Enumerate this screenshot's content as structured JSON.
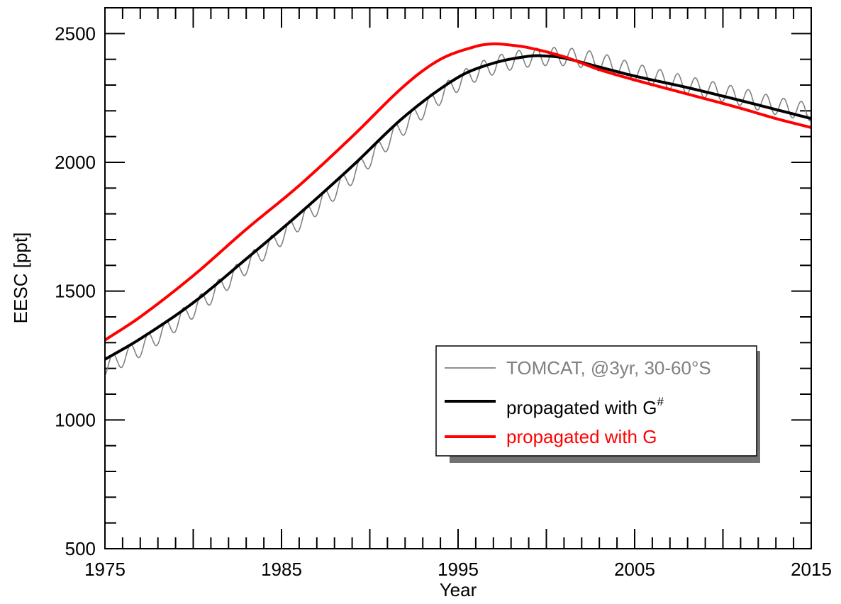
{
  "chart_data": {
    "type": "line",
    "xlabel": "Year",
    "ylabel": "EESC [ppt]",
    "xlim": [
      1975,
      2015
    ],
    "ylim": [
      500,
      2600
    ],
    "x_ticks": [
      1975,
      1985,
      1995,
      2005,
      2015
    ],
    "y_ticks": [
      500,
      1000,
      1500,
      2000,
      2500
    ],
    "grid": false,
    "legend_position": "lower-right",
    "series": [
      {
        "name": "TOMCAT, @3yr, 30-60°S",
        "color": "#808080",
        "style": "thin-oscillating",
        "seasonal_amplitude": 35,
        "x": [
          1975,
          1977,
          1980,
          1983,
          1986,
          1989,
          1992,
          1995,
          1997,
          1999,
          2001,
          2003,
          2005,
          2008,
          2011,
          2013,
          2015
        ],
        "y": [
          1205,
          1280,
          1430,
          1600,
          1770,
          1950,
          2145,
          2310,
          2375,
          2405,
          2410,
          2390,
          2350,
          2300,
          2255,
          2220,
          2195
        ]
      },
      {
        "name": "propagated with G",
        "name_sup": "#",
        "color": "#000000",
        "style": "thick",
        "x": [
          1975,
          1977,
          1980,
          1983,
          1986,
          1989,
          1992,
          1995,
          1997,
          1999,
          2000,
          2001,
          2003,
          2005,
          2008,
          2011,
          2013,
          2015
        ],
        "y": [
          1235,
          1315,
          1455,
          1625,
          1800,
          1985,
          2180,
          2330,
          2385,
          2412,
          2413,
          2405,
          2370,
          2335,
          2290,
          2240,
          2205,
          2170
        ]
      },
      {
        "name": "propagated with G",
        "color": "#ff0000",
        "style": "thick",
        "x": [
          1975,
          1977,
          1980,
          1983,
          1986,
          1989,
          1992,
          1994,
          1996,
          1997,
          1998,
          1999,
          2001,
          2003,
          2005,
          2008,
          2011,
          2013,
          2015
        ],
        "y": [
          1310,
          1400,
          1560,
          1740,
          1910,
          2100,
          2300,
          2400,
          2450,
          2460,
          2455,
          2445,
          2410,
          2360,
          2320,
          2265,
          2210,
          2170,
          2135
        ]
      }
    ]
  }
}
